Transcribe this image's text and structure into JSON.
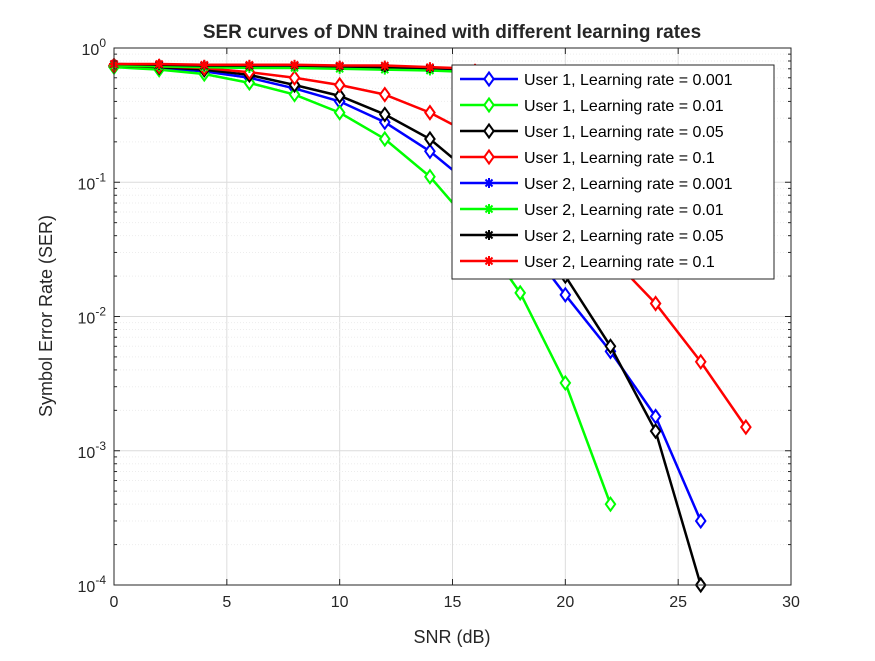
{
  "chart_data": {
    "type": "line",
    "title": "SER curves of DNN trained with different learning rates",
    "xlabel": "SNR (dB)",
    "ylabel": "Symbol Error Rate (SER)",
    "xlim": [
      0,
      30
    ],
    "ylim": [
      0.0001,
      1
    ],
    "yscale": "log",
    "grid": true,
    "legend_position": "top-right",
    "x_ticks": [
      0,
      5,
      10,
      15,
      20,
      25,
      30
    ],
    "y_ticks": [
      {
        "value": 0.0001,
        "base": "10",
        "exp": "-4"
      },
      {
        "value": 0.001,
        "base": "10",
        "exp": "-3"
      },
      {
        "value": 0.01,
        "base": "10",
        "exp": "-2"
      },
      {
        "value": 0.1,
        "base": "10",
        "exp": "-1"
      },
      {
        "value": 1,
        "base": "10",
        "exp": "0"
      }
    ],
    "series": [
      {
        "name": "User 1, Learning rate = 0.001",
        "color": "#0000ff",
        "marker": "diamond",
        "x": [
          0,
          2,
          4,
          6,
          8,
          10,
          12,
          14,
          16,
          18,
          20,
          22,
          24,
          26
        ],
        "y": [
          0.73,
          0.71,
          0.67,
          0.6,
          0.5,
          0.4,
          0.28,
          0.17,
          0.09,
          0.04,
          0.0145,
          0.0055,
          0.0018,
          0.0003
        ]
      },
      {
        "name": "User 1, Learning rate = 0.01",
        "color": "#00ff00",
        "marker": "diamond",
        "x": [
          0,
          2,
          4,
          6,
          8,
          10,
          12,
          14,
          16,
          18,
          20,
          22
        ],
        "y": [
          0.72,
          0.69,
          0.64,
          0.55,
          0.45,
          0.33,
          0.21,
          0.11,
          0.045,
          0.015,
          0.0032,
          0.0004
        ]
      },
      {
        "name": "User 1, Learning rate = 0.05",
        "color": "#000000",
        "marker": "diamond",
        "x": [
          0,
          2,
          4,
          6,
          8,
          10,
          12,
          14,
          16,
          18,
          20,
          22,
          24,
          26
        ],
        "y": [
          0.74,
          0.72,
          0.69,
          0.63,
          0.53,
          0.44,
          0.32,
          0.21,
          0.11,
          0.05,
          0.02,
          0.006,
          0.0014,
          0.0001
        ]
      },
      {
        "name": "User 1, Learning rate = 0.1",
        "color": "#ff0000",
        "marker": "diamond",
        "x": [
          0,
          2,
          4,
          6,
          8,
          10,
          12,
          14,
          16,
          18,
          20,
          22,
          24,
          26,
          28
        ],
        "y": [
          0.74,
          0.73,
          0.71,
          0.66,
          0.6,
          0.53,
          0.45,
          0.33,
          0.22,
          0.12,
          0.06,
          0.028,
          0.0125,
          0.0046,
          0.0015
        ]
      },
      {
        "name": "User 2, Learning rate = 0.001",
        "color": "#0000ff",
        "marker": "asterisk",
        "x": [
          0,
          2,
          4,
          6,
          8,
          10,
          12,
          14,
          16
        ],
        "y": [
          0.75,
          0.74,
          0.74,
          0.74,
          0.74,
          0.73,
          0.72,
          0.7,
          0.68
        ]
      },
      {
        "name": "User 2, Learning rate = 0.01",
        "color": "#00ff00",
        "marker": "asterisk",
        "x": [
          0,
          2,
          4,
          6,
          8,
          10,
          12,
          14,
          16
        ],
        "y": [
          0.74,
          0.73,
          0.72,
          0.71,
          0.71,
          0.7,
          0.69,
          0.68,
          0.66
        ]
      },
      {
        "name": "User 2, Learning rate = 0.05",
        "color": "#000000",
        "marker": "asterisk",
        "x": [
          0,
          2,
          4,
          6,
          8,
          10,
          12,
          14,
          16
        ],
        "y": [
          0.76,
          0.75,
          0.74,
          0.74,
          0.74,
          0.73,
          0.72,
          0.71,
          0.69
        ]
      },
      {
        "name": "User 2, Learning rate = 0.1",
        "color": "#ff0000",
        "marker": "asterisk",
        "x": [
          0,
          2,
          4,
          6,
          8,
          10,
          12,
          14,
          16
        ],
        "y": [
          0.76,
          0.76,
          0.75,
          0.75,
          0.75,
          0.74,
          0.74,
          0.72,
          0.7
        ]
      }
    ]
  }
}
